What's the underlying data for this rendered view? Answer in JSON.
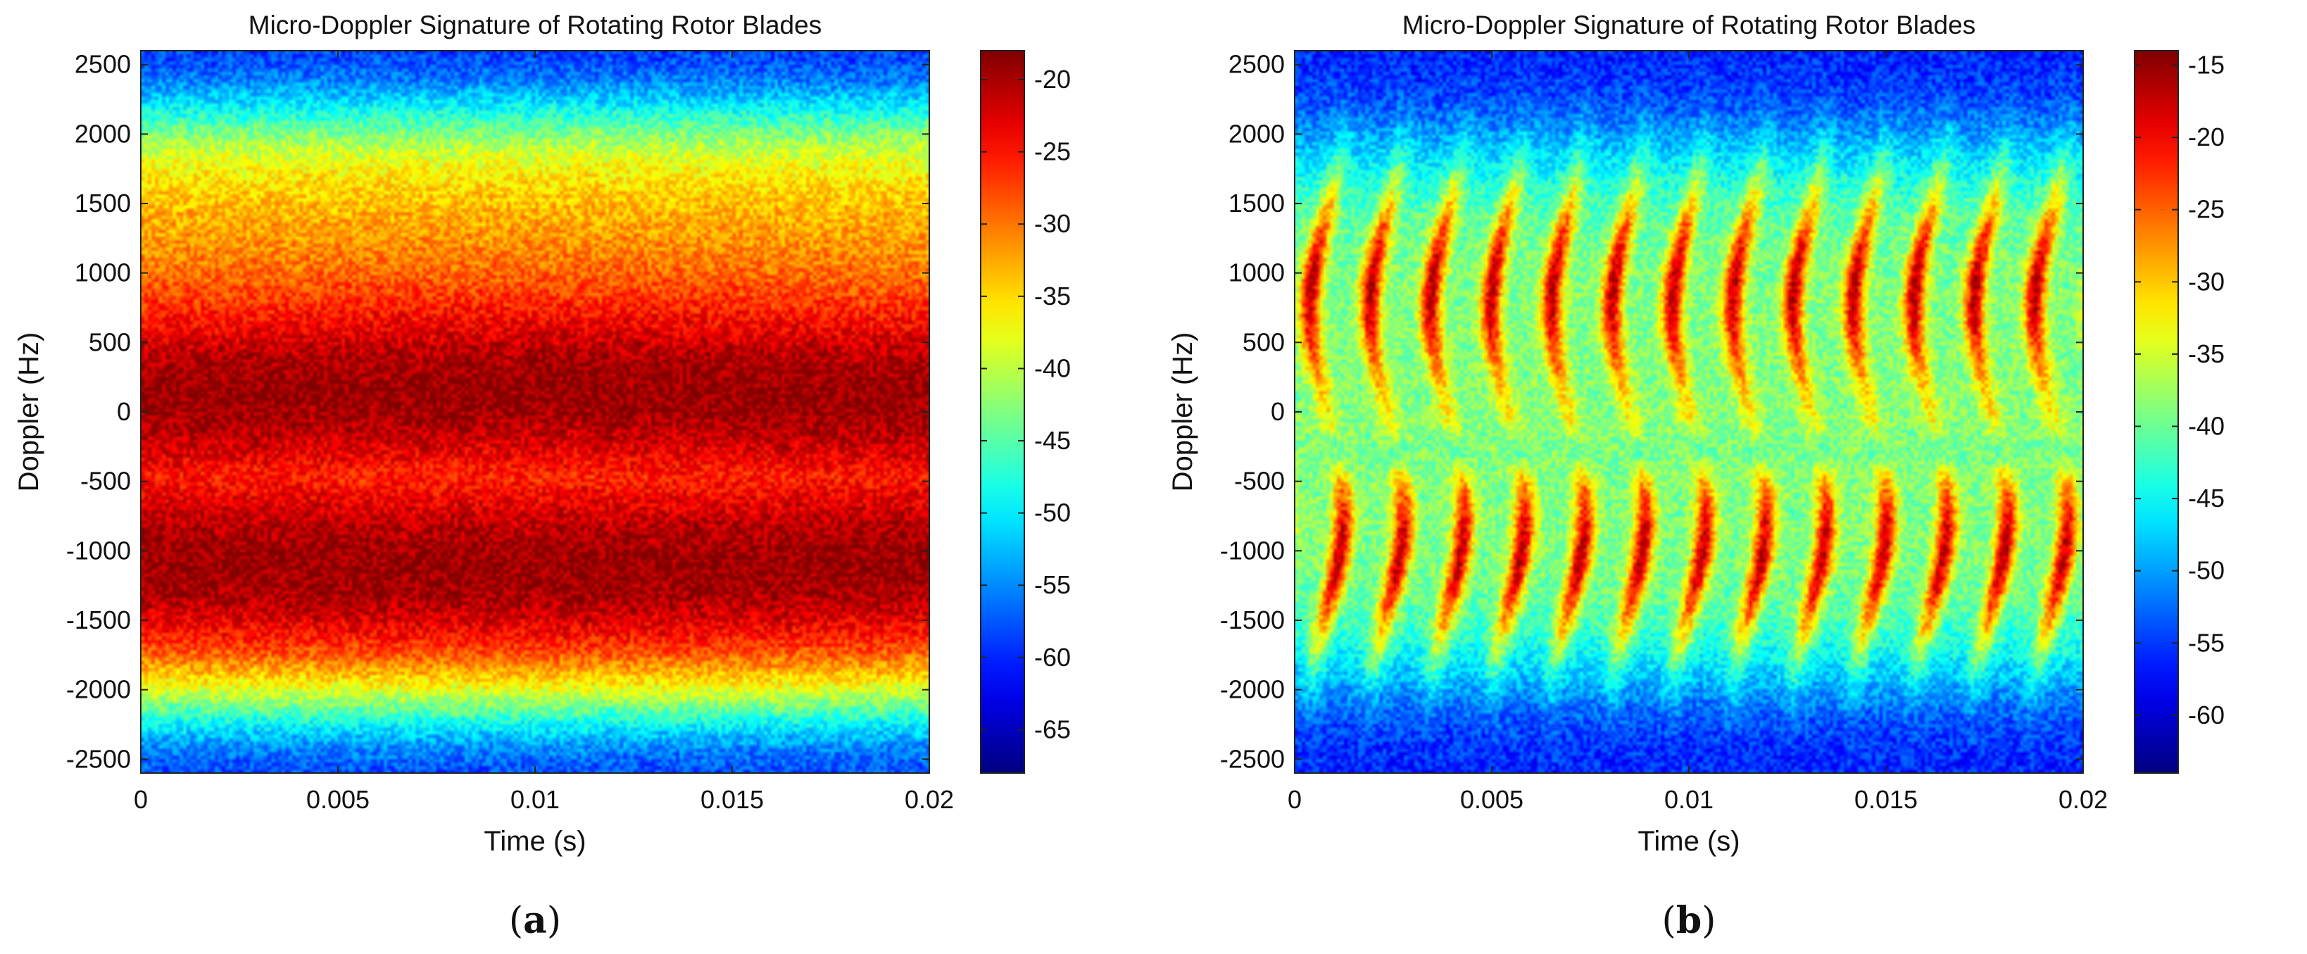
{
  "chart_data": [
    {
      "type": "heatmap",
      "panel": "a",
      "caption_letter": "a",
      "title": "Micro-Doppler Signature of Rotating Rotor Blades",
      "xlabel": "Time (s)",
      "ylabel": "Doppler (Hz)",
      "xlim": [
        0,
        0.02
      ],
      "ylim": [
        -2600,
        2600
      ],
      "xticks": [
        0,
        0.005,
        0.01,
        0.015,
        0.02
      ],
      "xtick_labels": [
        "0",
        "0.005",
        "0.01",
        "0.015",
        "0.02"
      ],
      "yticks": [
        2500,
        2000,
        1500,
        1000,
        500,
        0,
        -500,
        -1000,
        -1500,
        -2000,
        -2500
      ],
      "ytick_labels": [
        "2500",
        "2000",
        "1500",
        "1000",
        "500",
        "0",
        "-500",
        "-1000",
        "-1500",
        "-2000",
        "-2500"
      ],
      "colorbar": {
        "colormap": "jet",
        "range": [
          -68,
          -18
        ],
        "ticks": [
          -20,
          -25,
          -30,
          -35,
          -40,
          -45,
          -50,
          -55,
          -60,
          -65
        ],
        "tick_labels": [
          "-20",
          "-25",
          "-30",
          "-35",
          "-40",
          "-45",
          "-50",
          "-55",
          "-60",
          "-65"
        ]
      },
      "signal": {
        "pattern": "continuous",
        "peak_bands_hz": [
          100,
          -1100
        ],
        "band_width_hz": 750,
        "occupied_half_width_hz": 2100,
        "blade_flashes": 0
      }
    },
    {
      "type": "heatmap",
      "panel": "b",
      "caption_letter": "b",
      "title": "Micro-Doppler Signature of Rotating Rotor Blades",
      "xlabel": "Time (s)",
      "ylabel": "Doppler (Hz)",
      "xlim": [
        0,
        0.02
      ],
      "ylim": [
        -2600,
        2600
      ],
      "xticks": [
        0,
        0.005,
        0.01,
        0.015,
        0.02
      ],
      "xtick_labels": [
        "0",
        "0.005",
        "0.01",
        "0.015",
        "0.02"
      ],
      "yticks": [
        2500,
        2000,
        1500,
        1000,
        500,
        0,
        -500,
        -1000,
        -1500,
        -2000,
        -2500
      ],
      "ytick_labels": [
        "2500",
        "2000",
        "1500",
        "1000",
        "500",
        "0",
        "-500",
        "-1000",
        "-1500",
        "-2000",
        "-2500"
      ],
      "colorbar": {
        "colormap": "jet",
        "range": [
          -64,
          -14
        ],
        "ticks": [
          -15,
          -20,
          -25,
          -30,
          -35,
          -40,
          -45,
          -50,
          -55,
          -60
        ],
        "tick_labels": [
          "-15",
          "-20",
          "-25",
          "-30",
          "-35",
          "-40",
          "-45",
          "-50",
          "-55",
          "-60"
        ]
      },
      "signal": {
        "pattern": "periodic",
        "peak_bands_hz": [
          900,
          -1050
        ],
        "band_width_hz": 700,
        "occupied_half_width_hz": 1900,
        "blade_flashes": 13
      }
    }
  ]
}
